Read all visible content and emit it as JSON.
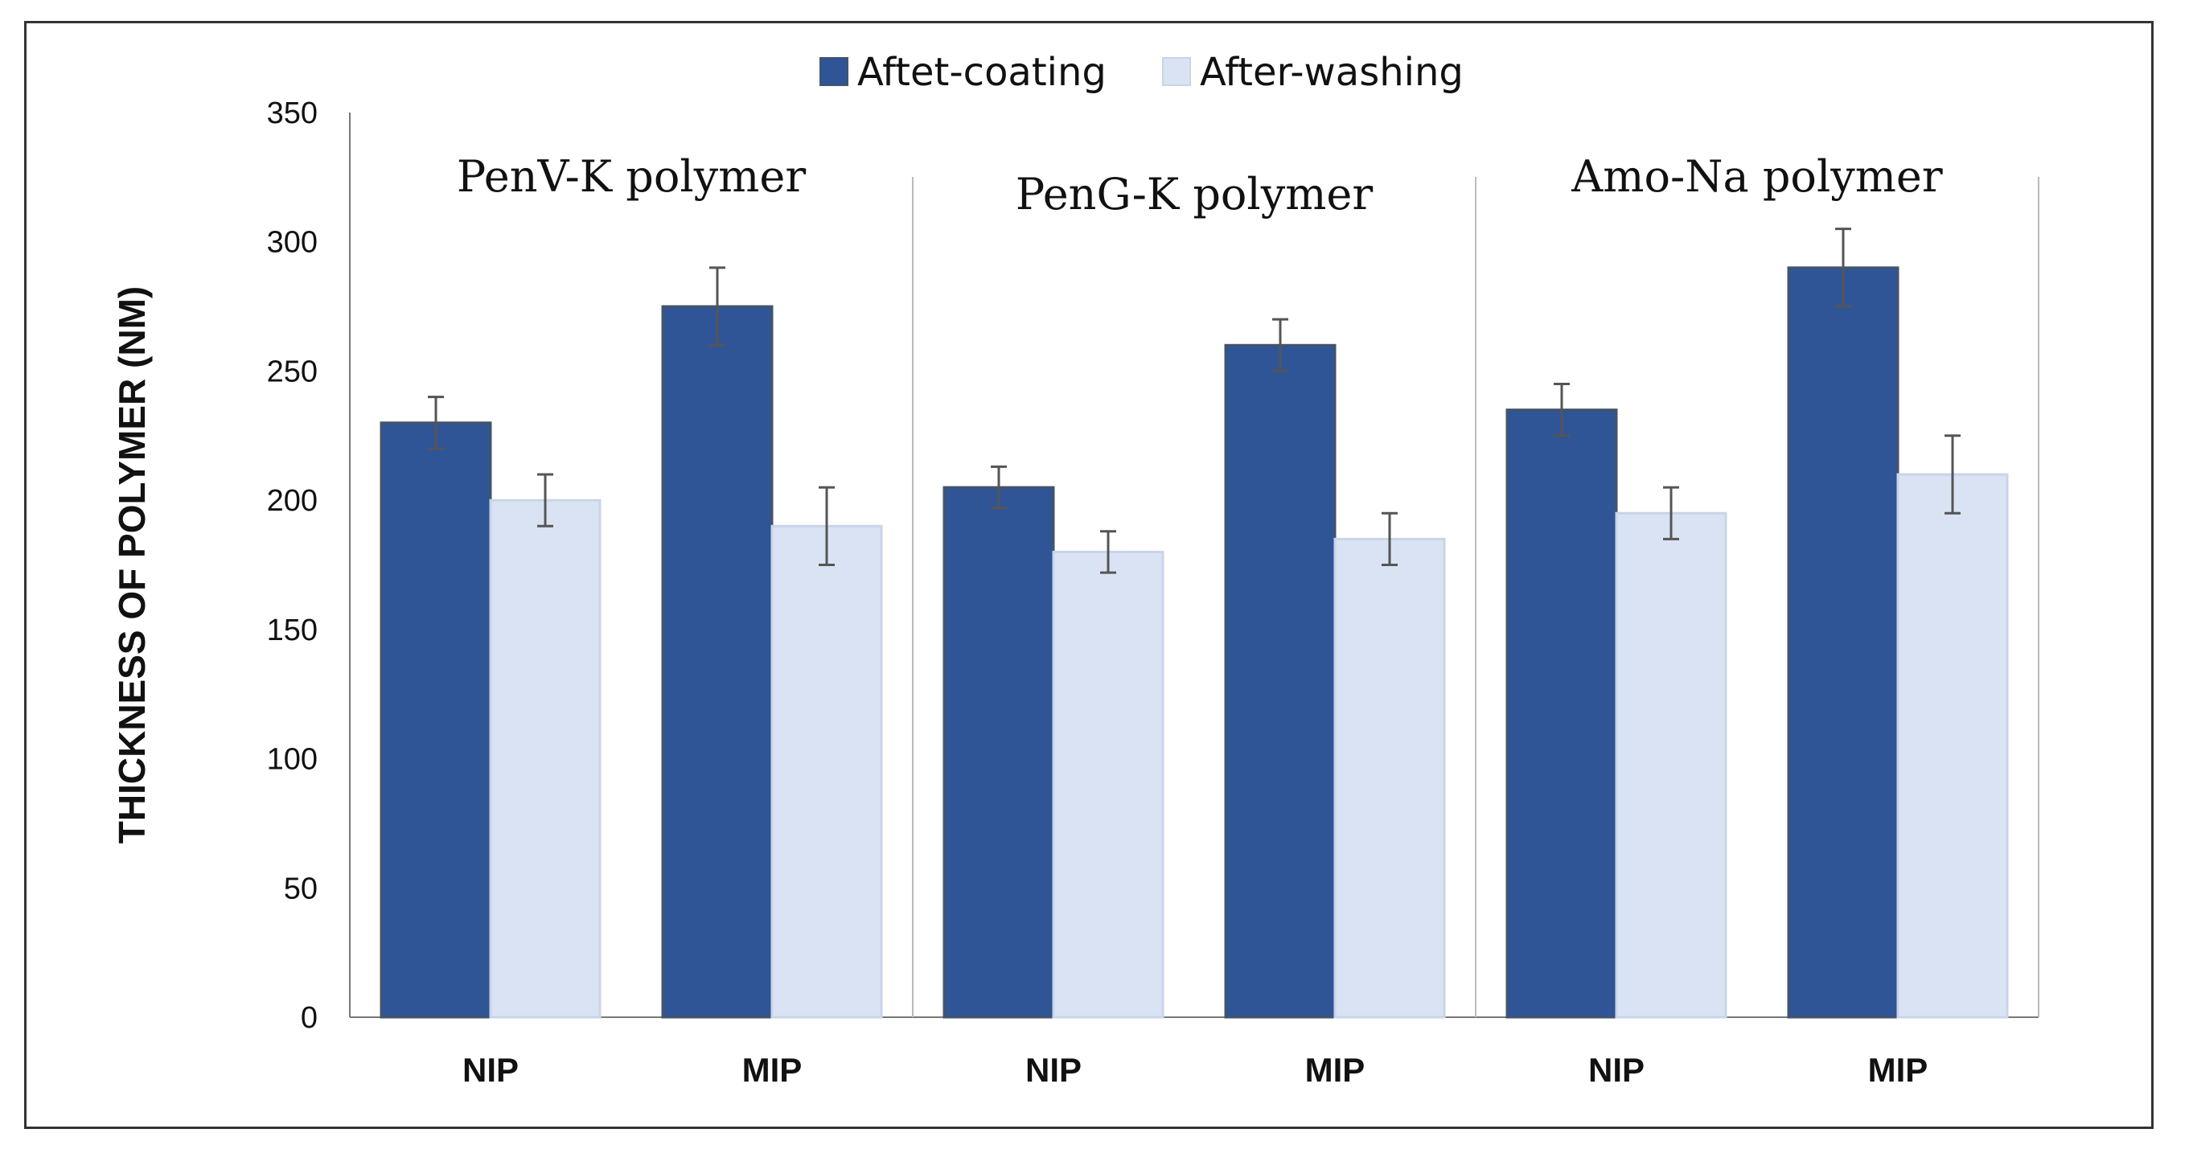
{
  "chart_data": {
    "type": "bar",
    "ylabel": "THICKNESS OF POLYMER (NM)",
    "xlabel": "",
    "ylim": [
      0,
      350
    ],
    "yticks": [
      0,
      50,
      100,
      150,
      200,
      250,
      300,
      350
    ],
    "legend_position": "top-center",
    "groups": [
      {
        "label": "PenV-K polymer",
        "categories": [
          "NIP",
          "MIP"
        ],
        "series_values": [
          [
            230,
            200
          ],
          [
            275,
            190
          ]
        ],
        "errors": [
          [
            10,
            10
          ],
          [
            15,
            15
          ]
        ]
      },
      {
        "label": "PenG-K polymer",
        "categories": [
          "NIP",
          "MIP"
        ],
        "series_values": [
          [
            205,
            180
          ],
          [
            260,
            185
          ]
        ],
        "errors": [
          [
            8,
            8
          ],
          [
            10,
            10
          ]
        ]
      },
      {
        "label": "Amo-Na polymer",
        "categories": [
          "NIP",
          "MIP"
        ],
        "series_values": [
          [
            235,
            195
          ],
          [
            290,
            210
          ]
        ],
        "errors": [
          [
            10,
            10
          ],
          [
            15,
            15
          ]
        ]
      }
    ],
    "series": [
      {
        "name": "Aftet-coating",
        "color": "#2f5597"
      },
      {
        "name": "After-washing",
        "color": "#dae3f3"
      }
    ],
    "error_bar_color": "#555555",
    "grid": false
  }
}
